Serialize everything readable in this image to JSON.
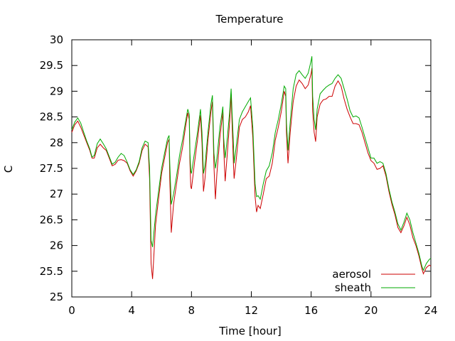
{
  "chart_data": {
    "type": "line",
    "title": "Temperature",
    "xlabel": "Time [hour]",
    "ylabel": "C",
    "xlim": [
      0,
      24
    ],
    "ylim": [
      25,
      30
    ],
    "xticks": [
      0,
      4,
      8,
      12,
      16,
      20,
      24
    ],
    "yticks": [
      25,
      25.5,
      26,
      26.5,
      27,
      27.5,
      28,
      28.5,
      29,
      29.5,
      30
    ],
    "xtick_labels": [
      "0",
      "4",
      "8",
      "12",
      "16",
      "20",
      "24"
    ],
    "ytick_labels": [
      "25",
      "25.5",
      "26",
      "26.5",
      "27",
      "27.5",
      "28",
      "28.5",
      "29",
      "29.5",
      "30"
    ],
    "grid": false,
    "legend": "bottom-right",
    "series": [
      {
        "name": "aerosol",
        "color": "#cc0000",
        "points": [
          [
            0.0,
            28.2
          ],
          [
            0.2,
            28.35
          ],
          [
            0.4,
            28.42
          ],
          [
            0.6,
            28.3
          ],
          [
            0.8,
            28.15
          ],
          [
            1.0,
            28.0
          ],
          [
            1.2,
            27.85
          ],
          [
            1.35,
            27.7
          ],
          [
            1.5,
            27.7
          ],
          [
            1.7,
            27.9
          ],
          [
            1.9,
            27.97
          ],
          [
            2.1,
            27.9
          ],
          [
            2.3,
            27.85
          ],
          [
            2.5,
            27.7
          ],
          [
            2.7,
            27.55
          ],
          [
            2.9,
            27.58
          ],
          [
            3.1,
            27.66
          ],
          [
            3.3,
            27.67
          ],
          [
            3.5,
            27.65
          ],
          [
            3.7,
            27.6
          ],
          [
            3.9,
            27.45
          ],
          [
            4.1,
            27.35
          ],
          [
            4.3,
            27.45
          ],
          [
            4.5,
            27.6
          ],
          [
            4.7,
            27.85
          ],
          [
            4.9,
            27.97
          ],
          [
            5.1,
            27.92
          ],
          [
            5.2,
            27.3
          ],
          [
            5.3,
            25.65
          ],
          [
            5.4,
            25.35
          ],
          [
            5.6,
            26.4
          ],
          [
            5.8,
            26.9
          ],
          [
            6.0,
            27.4
          ],
          [
            6.2,
            27.7
          ],
          [
            6.4,
            28.0
          ],
          [
            6.5,
            28.07
          ],
          [
            6.55,
            27.3
          ],
          [
            6.65,
            26.25
          ],
          [
            6.8,
            26.8
          ],
          [
            7.0,
            27.2
          ],
          [
            7.2,
            27.6
          ],
          [
            7.4,
            27.9
          ],
          [
            7.6,
            28.3
          ],
          [
            7.75,
            28.58
          ],
          [
            7.85,
            28.45
          ],
          [
            7.9,
            27.6
          ],
          [
            7.95,
            27.15
          ],
          [
            8.0,
            27.1
          ],
          [
            8.2,
            27.6
          ],
          [
            8.4,
            28.05
          ],
          [
            8.6,
            28.53
          ],
          [
            8.7,
            28.0
          ],
          [
            8.8,
            27.05
          ],
          [
            8.9,
            27.3
          ],
          [
            9.1,
            28.05
          ],
          [
            9.3,
            28.6
          ],
          [
            9.4,
            28.8
          ],
          [
            9.5,
            27.55
          ],
          [
            9.6,
            26.9
          ],
          [
            9.7,
            27.4
          ],
          [
            9.9,
            28.1
          ],
          [
            10.1,
            28.6
          ],
          [
            10.15,
            27.9
          ],
          [
            10.25,
            27.25
          ],
          [
            10.4,
            27.8
          ],
          [
            10.55,
            28.4
          ],
          [
            10.65,
            28.95
          ],
          [
            10.7,
            28.5
          ],
          [
            10.8,
            27.6
          ],
          [
            10.85,
            27.3
          ],
          [
            11.0,
            27.7
          ],
          [
            11.2,
            28.3
          ],
          [
            11.4,
            28.45
          ],
          [
            11.6,
            28.5
          ],
          [
            11.8,
            28.6
          ],
          [
            11.95,
            28.72
          ],
          [
            12.1,
            28.1
          ],
          [
            12.25,
            26.95
          ],
          [
            12.35,
            26.65
          ],
          [
            12.45,
            26.78
          ],
          [
            12.6,
            26.72
          ],
          [
            12.8,
            27.0
          ],
          [
            13.0,
            27.3
          ],
          [
            13.2,
            27.35
          ],
          [
            13.4,
            27.6
          ],
          [
            13.6,
            28.05
          ],
          [
            13.8,
            28.3
          ],
          [
            14.0,
            28.6
          ],
          [
            14.2,
            29.0
          ],
          [
            14.3,
            28.9
          ],
          [
            14.35,
            28.2
          ],
          [
            14.45,
            27.6
          ],
          [
            14.6,
            28.2
          ],
          [
            14.8,
            28.8
          ],
          [
            15.0,
            29.1
          ],
          [
            15.2,
            29.22
          ],
          [
            15.4,
            29.15
          ],
          [
            15.6,
            29.05
          ],
          [
            15.8,
            29.12
          ],
          [
            16.0,
            29.35
          ],
          [
            16.05,
            29.45
          ],
          [
            16.1,
            28.6
          ],
          [
            16.2,
            28.2
          ],
          [
            16.3,
            28.02
          ],
          [
            16.4,
            28.5
          ],
          [
            16.6,
            28.75
          ],
          [
            16.8,
            28.83
          ],
          [
            17.0,
            28.85
          ],
          [
            17.2,
            28.9
          ],
          [
            17.4,
            28.9
          ],
          [
            17.6,
            29.1
          ],
          [
            17.8,
            29.2
          ],
          [
            18.0,
            29.1
          ],
          [
            18.2,
            28.85
          ],
          [
            18.4,
            28.65
          ],
          [
            18.6,
            28.5
          ],
          [
            18.8,
            28.37
          ],
          [
            19.0,
            28.37
          ],
          [
            19.2,
            28.35
          ],
          [
            19.4,
            28.2
          ],
          [
            19.6,
            28.0
          ],
          [
            19.8,
            27.8
          ],
          [
            20.0,
            27.65
          ],
          [
            20.2,
            27.6
          ],
          [
            20.4,
            27.48
          ],
          [
            20.6,
            27.5
          ],
          [
            20.8,
            27.55
          ],
          [
            21.0,
            27.35
          ],
          [
            21.2,
            27.05
          ],
          [
            21.4,
            26.8
          ],
          [
            21.6,
            26.6
          ],
          [
            21.8,
            26.35
          ],
          [
            22.0,
            26.25
          ],
          [
            22.2,
            26.38
          ],
          [
            22.4,
            26.55
          ],
          [
            22.6,
            26.4
          ],
          [
            22.8,
            26.15
          ],
          [
            23.0,
            26.0
          ],
          [
            23.2,
            25.8
          ],
          [
            23.4,
            25.55
          ],
          [
            23.5,
            25.45
          ],
          [
            23.7,
            25.57
          ],
          [
            23.9,
            25.62
          ],
          [
            24.0,
            25.6
          ]
        ]
      },
      {
        "name": "sheath",
        "color": "#00aa00",
        "points": [
          [
            0.0,
            28.25
          ],
          [
            0.2,
            28.4
          ],
          [
            0.4,
            28.48
          ],
          [
            0.6,
            28.38
          ],
          [
            0.8,
            28.2
          ],
          [
            1.0,
            28.03
          ],
          [
            1.2,
            27.88
          ],
          [
            1.35,
            27.72
          ],
          [
            1.5,
            27.75
          ],
          [
            1.7,
            27.98
          ],
          [
            1.9,
            28.07
          ],
          [
            2.1,
            27.98
          ],
          [
            2.3,
            27.88
          ],
          [
            2.5,
            27.73
          ],
          [
            2.7,
            27.58
          ],
          [
            2.9,
            27.62
          ],
          [
            3.1,
            27.72
          ],
          [
            3.3,
            27.79
          ],
          [
            3.5,
            27.75
          ],
          [
            3.7,
            27.62
          ],
          [
            3.9,
            27.47
          ],
          [
            4.1,
            27.38
          ],
          [
            4.3,
            27.47
          ],
          [
            4.5,
            27.63
          ],
          [
            4.7,
            27.9
          ],
          [
            4.9,
            28.03
          ],
          [
            5.1,
            28.0
          ],
          [
            5.2,
            27.5
          ],
          [
            5.3,
            26.1
          ],
          [
            5.4,
            25.97
          ],
          [
            5.6,
            26.6
          ],
          [
            5.8,
            27.05
          ],
          [
            6.0,
            27.5
          ],
          [
            6.2,
            27.8
          ],
          [
            6.4,
            28.08
          ],
          [
            6.5,
            28.14
          ],
          [
            6.55,
            27.6
          ],
          [
            6.65,
            26.8
          ],
          [
            6.8,
            27.0
          ],
          [
            7.0,
            27.35
          ],
          [
            7.2,
            27.75
          ],
          [
            7.4,
            28.05
          ],
          [
            7.6,
            28.4
          ],
          [
            7.75,
            28.65
          ],
          [
            7.85,
            28.55
          ],
          [
            7.9,
            27.8
          ],
          [
            7.95,
            27.45
          ],
          [
            8.0,
            27.4
          ],
          [
            8.2,
            27.8
          ],
          [
            8.4,
            28.2
          ],
          [
            8.6,
            28.65
          ],
          [
            8.7,
            28.2
          ],
          [
            8.8,
            27.4
          ],
          [
            8.9,
            27.55
          ],
          [
            9.1,
            28.2
          ],
          [
            9.3,
            28.75
          ],
          [
            9.4,
            28.92
          ],
          [
            9.5,
            27.8
          ],
          [
            9.6,
            27.5
          ],
          [
            9.7,
            27.7
          ],
          [
            9.9,
            28.3
          ],
          [
            10.1,
            28.7
          ],
          [
            10.15,
            28.1
          ],
          [
            10.25,
            27.7
          ],
          [
            10.4,
            28.1
          ],
          [
            10.55,
            28.6
          ],
          [
            10.65,
            29.05
          ],
          [
            10.7,
            28.7
          ],
          [
            10.8,
            28.0
          ],
          [
            10.85,
            27.6
          ],
          [
            11.0,
            27.95
          ],
          [
            11.2,
            28.45
          ],
          [
            11.4,
            28.6
          ],
          [
            11.6,
            28.7
          ],
          [
            11.8,
            28.8
          ],
          [
            11.95,
            28.87
          ],
          [
            12.1,
            28.3
          ],
          [
            12.25,
            27.2
          ],
          [
            12.35,
            26.95
          ],
          [
            12.45,
            26.97
          ],
          [
            12.6,
            26.9
          ],
          [
            12.8,
            27.2
          ],
          [
            13.0,
            27.45
          ],
          [
            13.2,
            27.55
          ],
          [
            13.4,
            27.8
          ],
          [
            13.6,
            28.2
          ],
          [
            13.8,
            28.45
          ],
          [
            14.0,
            28.75
          ],
          [
            14.2,
            29.1
          ],
          [
            14.3,
            29.05
          ],
          [
            14.35,
            28.4
          ],
          [
            14.45,
            27.85
          ],
          [
            14.6,
            28.4
          ],
          [
            14.8,
            29.05
          ],
          [
            15.0,
            29.33
          ],
          [
            15.2,
            29.4
          ],
          [
            15.4,
            29.32
          ],
          [
            15.6,
            29.25
          ],
          [
            15.8,
            29.35
          ],
          [
            16.0,
            29.6
          ],
          [
            16.05,
            29.68
          ],
          [
            16.1,
            28.9
          ],
          [
            16.2,
            28.45
          ],
          [
            16.3,
            28.25
          ],
          [
            16.4,
            28.65
          ],
          [
            16.6,
            28.95
          ],
          [
            16.8,
            29.02
          ],
          [
            17.0,
            29.08
          ],
          [
            17.2,
            29.12
          ],
          [
            17.4,
            29.15
          ],
          [
            17.6,
            29.25
          ],
          [
            17.8,
            29.32
          ],
          [
            18.0,
            29.25
          ],
          [
            18.2,
            29.05
          ],
          [
            18.4,
            28.85
          ],
          [
            18.6,
            28.62
          ],
          [
            18.8,
            28.5
          ],
          [
            19.0,
            28.52
          ],
          [
            19.2,
            28.48
          ],
          [
            19.4,
            28.3
          ],
          [
            19.6,
            28.1
          ],
          [
            19.8,
            27.9
          ],
          [
            20.0,
            27.7
          ],
          [
            20.2,
            27.7
          ],
          [
            20.4,
            27.6
          ],
          [
            20.6,
            27.63
          ],
          [
            20.8,
            27.6
          ],
          [
            21.0,
            27.4
          ],
          [
            21.2,
            27.1
          ],
          [
            21.4,
            26.85
          ],
          [
            21.6,
            26.65
          ],
          [
            21.8,
            26.42
          ],
          [
            22.0,
            26.3
          ],
          [
            22.2,
            26.45
          ],
          [
            22.4,
            26.63
          ],
          [
            22.6,
            26.5
          ],
          [
            22.8,
            26.25
          ],
          [
            23.0,
            26.05
          ],
          [
            23.2,
            25.85
          ],
          [
            23.4,
            25.6
          ],
          [
            23.5,
            25.52
          ],
          [
            23.7,
            25.65
          ],
          [
            23.9,
            25.73
          ],
          [
            24.0,
            25.75
          ]
        ]
      }
    ]
  }
}
